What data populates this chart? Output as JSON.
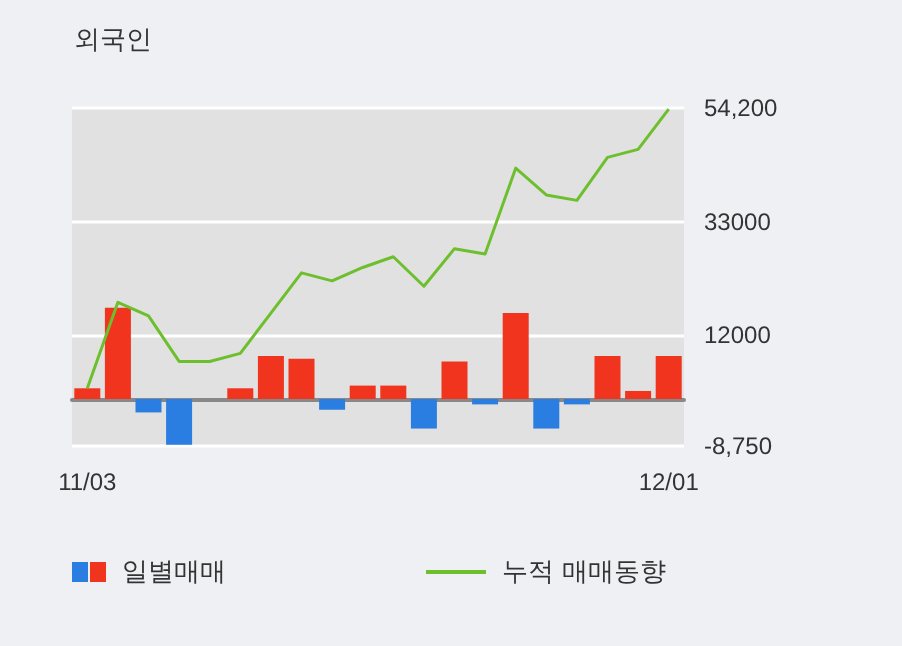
{
  "chart_data": {
    "type": "bar",
    "title": "외국인",
    "categories": [
      "11/03",
      null,
      null,
      null,
      null,
      null,
      null,
      null,
      null,
      null,
      null,
      null,
      null,
      null,
      null,
      null,
      null,
      null,
      null,
      "12/01"
    ],
    "series": [
      {
        "name": "일별매매",
        "colors": [
          "#f0341e",
          "#f0341e",
          "#2a7de1",
          "#2a7de1",
          "#f0341e",
          "#f0341e",
          "#f0341e",
          "#f0341e",
          "#2a7de1",
          "#f0341e",
          "#f0341e",
          "#2a7de1",
          "#f0341e",
          "#2a7de1",
          "#f0341e",
          "#2a7de1",
          "#2a7de1",
          "#f0341e",
          "#f0341e",
          "#f0341e"
        ],
        "values": [
          2000,
          17000,
          -2500,
          -8500,
          0,
          2000,
          8000,
          7500,
          -2000,
          2500,
          2500,
          -5500,
          7000,
          -1000,
          16000,
          -5500,
          -1000,
          8000,
          1500,
          8000
        ]
      },
      {
        "name": "누적 매매동향",
        "type": "line",
        "color": "#6dbf2e",
        "values": [
          2000,
          18000,
          15500,
          7000,
          7000,
          8500,
          16000,
          23500,
          22000,
          24500,
          26500,
          21000,
          28000,
          27000,
          43000,
          38000,
          37000,
          45000,
          46500,
          54000
        ]
      }
    ],
    "ylim": [
      -8750,
      54200
    ],
    "yticks": [
      {
        "value": -8750,
        "label": "-8,750"
      },
      12000,
      33000,
      {
        "value": 54200,
        "label": "54,200"
      }
    ],
    "grid": "y",
    "legend": "bottom",
    "marker": "none",
    "line_style": "solid"
  }
}
